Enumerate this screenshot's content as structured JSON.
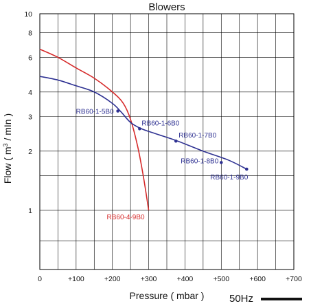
{
  "chart_data": {
    "type": "line",
    "title": "Blowers",
    "xlabel": "Pressure ( mbar )",
    "ylabel_prefix": "Flow ( m",
    "ylabel_sup": "3",
    "ylabel_suffix": " / mIn )",
    "frequency_label": "50Hz",
    "x_scale": "linear",
    "y_scale": "log",
    "xlim": [
      0,
      700
    ],
    "ylim": [
      0.5,
      10
    ],
    "grid": true,
    "x_ticks": [
      {
        "value": 0,
        "label": "0"
      },
      {
        "value": 100,
        "label": "+100"
      },
      {
        "value": 200,
        "label": "+200"
      },
      {
        "value": 300,
        "label": "+300"
      },
      {
        "value": 400,
        "label": "+400"
      },
      {
        "value": 500,
        "label": "+500"
      },
      {
        "value": 600,
        "label": "+600"
      },
      {
        "value": 700,
        "label": "+700"
      }
    ],
    "x_grid": [
      0,
      50,
      100,
      150,
      200,
      250,
      300,
      350,
      400,
      450,
      500,
      550,
      600,
      650,
      700
    ],
    "y_ticks": [
      {
        "value": 1,
        "label": "1"
      },
      {
        "value": 2,
        "label": "2"
      },
      {
        "value": 3,
        "label": "3"
      },
      {
        "value": 4,
        "label": "4"
      },
      {
        "value": 6,
        "label": "6"
      },
      {
        "value": 8,
        "label": "8"
      },
      {
        "value": 10,
        "label": "10"
      }
    ],
    "y_grid": [
      0.5,
      0.7,
      1,
      1.5,
      2,
      3,
      4,
      6,
      8,
      10
    ],
    "series": [
      {
        "name": "RB60-4-9B0",
        "color": "#d62a2a",
        "x": [
          0,
          50,
          100,
          150,
          200,
          230,
          250,
          270,
          285,
          295,
          300
        ],
        "y": [
          6.6,
          6.0,
          5.3,
          4.7,
          4.0,
          3.5,
          2.9,
          2.1,
          1.5,
          1.15,
          1.0
        ]
      },
      {
        "name": "",
        "color": "#2e3192",
        "x": [
          0,
          50,
          100,
          150,
          200,
          225,
          250,
          280,
          320,
          380,
          450,
          520,
          570
        ],
        "y": [
          4.8,
          4.6,
          4.3,
          4.0,
          3.5,
          3.15,
          2.8,
          2.6,
          2.45,
          2.25,
          2.0,
          1.8,
          1.62
        ]
      }
    ],
    "annotations": [
      {
        "text": "RB60-1-5B0",
        "x": 215,
        "y": 3.2
      },
      {
        "text": "RB60-1-6B0",
        "x": 275,
        "y": 2.6
      },
      {
        "text": "RB60-1-7B0",
        "x": 375,
        "y": 2.25
      },
      {
        "text": "RB60-1-8B0",
        "x": 500,
        "y": 1.75
      },
      {
        "text": "RB60-1-9B0",
        "x": 570,
        "y": 1.62
      }
    ]
  }
}
